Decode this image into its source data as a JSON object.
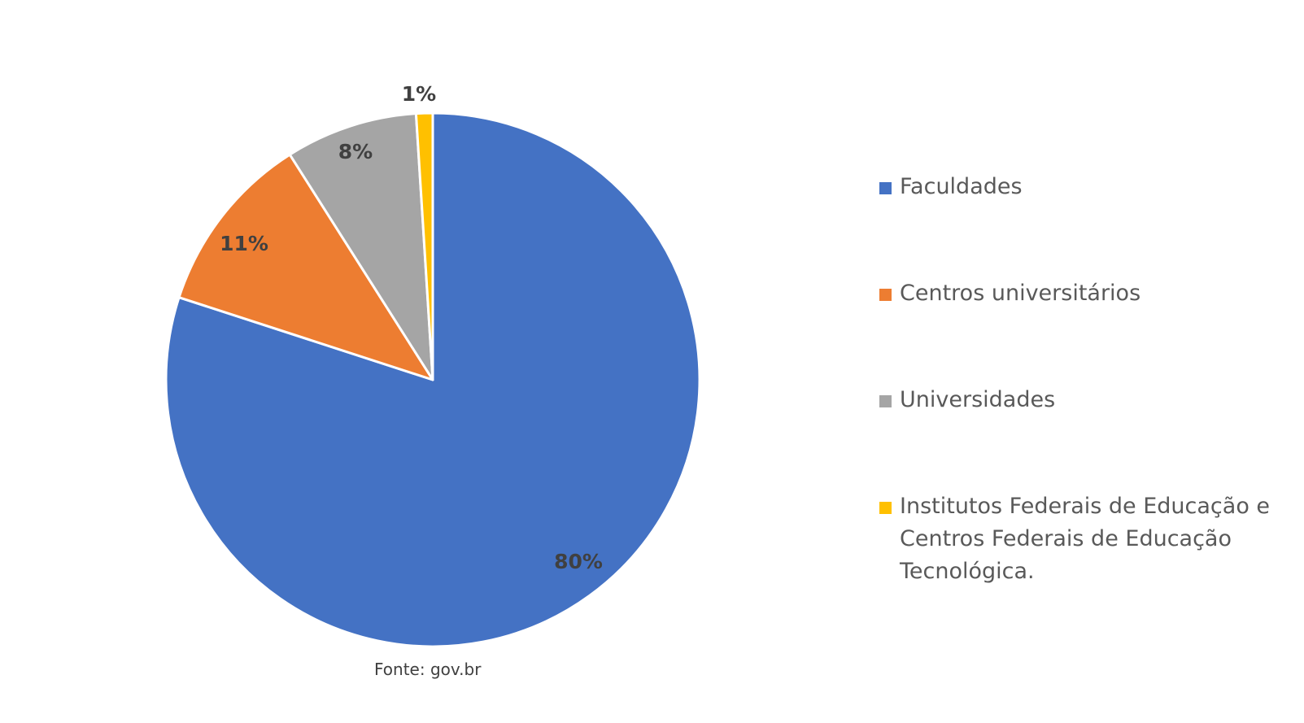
{
  "chart_data": {
    "type": "pie",
    "title": "",
    "categories": [
      "Faculdades",
      "Centros universitários",
      "Universidades",
      "Institutos Federais de Educação e Centros Federais de Educação Tecnológica."
    ],
    "values": [
      80,
      11,
      8,
      1
    ],
    "labels": [
      "80%",
      "11%",
      "8%",
      "1%"
    ],
    "colors": [
      "#4472C4",
      "#ED7D31",
      "#A5A5A5",
      "#FFC000"
    ],
    "legend_position": "right",
    "start_angle_deg": 0,
    "direction": "clockwise"
  },
  "source": "Fonte: gov.br"
}
